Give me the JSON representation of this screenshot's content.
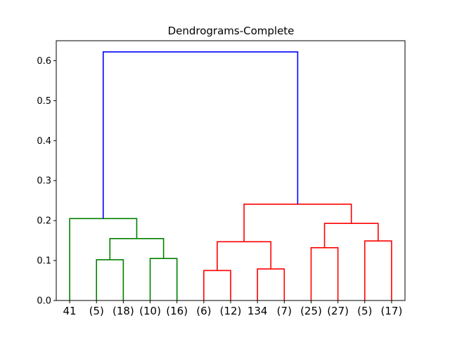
{
  "chart_data": {
    "type": "dendrogram",
    "title": "Dendrograms-Complete",
    "xlabel": "",
    "ylabel": "",
    "ylim": [
      0,
      0.65
    ],
    "yticks": [
      "0.0",
      "0.1",
      "0.2",
      "0.3",
      "0.4",
      "0.5",
      "0.6"
    ],
    "leaves": [
      "41",
      "(5)",
      "(18)",
      "(10)",
      "(16)",
      "(6)",
      "(12)",
      "134",
      "(7)",
      "(25)",
      "(27)",
      "(5)",
      "(17)"
    ],
    "merges": [
      {
        "left": [
          1,
          0
        ],
        "right": [
          2,
          0
        ],
        "height": 0.102,
        "color": "#008000"
      },
      {
        "left": [
          3,
          0
        ],
        "right": [
          4,
          0
        ],
        "height": 0.105,
        "color": "#008000"
      },
      {
        "left": [
          1.5,
          0.102
        ],
        "right": [
          3.5,
          0.105
        ],
        "height": 0.155,
        "color": "#008000"
      },
      {
        "left": [
          0,
          0
        ],
        "right": [
          2.5,
          0.155
        ],
        "height": 0.205,
        "color": "#008000"
      },
      {
        "left": [
          5,
          0
        ],
        "right": [
          6,
          0
        ],
        "height": 0.075,
        "color": "#ff0000"
      },
      {
        "left": [
          7,
          0
        ],
        "right": [
          8,
          0
        ],
        "height": 0.079,
        "color": "#ff0000"
      },
      {
        "left": [
          5.5,
          0.075
        ],
        "right": [
          7.5,
          0.079
        ],
        "height": 0.147,
        "color": "#ff0000"
      },
      {
        "left": [
          9,
          0
        ],
        "right": [
          10,
          0
        ],
        "height": 0.132,
        "color": "#ff0000"
      },
      {
        "left": [
          11,
          0
        ],
        "right": [
          12,
          0
        ],
        "height": 0.149,
        "color": "#ff0000"
      },
      {
        "left": [
          9.5,
          0.132
        ],
        "right": [
          11.5,
          0.149
        ],
        "height": 0.193,
        "color": "#ff0000"
      },
      {
        "left": [
          6.5,
          0.147
        ],
        "right": [
          10.5,
          0.193
        ],
        "height": 0.241,
        "color": "#ff0000"
      },
      {
        "left": [
          1.25,
          0.205
        ],
        "right": [
          8.5,
          0.241
        ],
        "height": 0.622,
        "color": "#0000ff"
      }
    ]
  }
}
